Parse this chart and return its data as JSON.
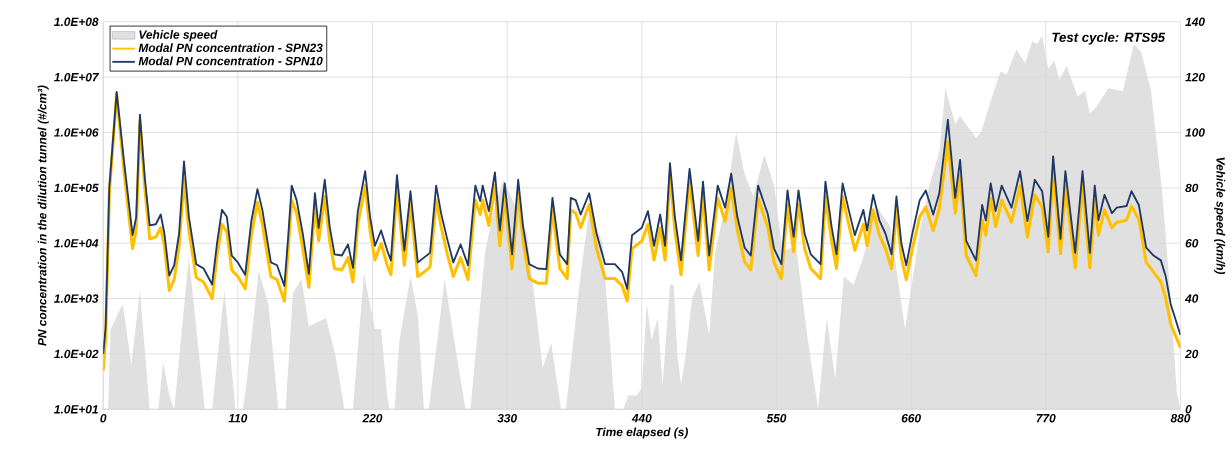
{
  "chart_data": {
    "type": "line",
    "xlabel": "Time elapsed (s)",
    "ylabel": "PN concentration in the dilution tunnel (#/cm³)",
    "y2label": "Vehicle speed (km/h)",
    "annotations": [
      "Test cycle: RTS95"
    ],
    "xlim": [
      0,
      880
    ],
    "xticks": [
      0,
      110,
      220,
      330,
      440,
      550,
      660,
      770,
      880
    ],
    "ylim": [
      10,
      100000000
    ],
    "yticks": [
      {
        "value": 10,
        "label": "1.0E+01"
      },
      {
        "value": 100,
        "label": "1.0E+02"
      },
      {
        "value": 1000,
        "label": "1.0E+03"
      },
      {
        "value": 10000,
        "label": "1.0E+04"
      },
      {
        "value": 100000,
        "label": "1.0E+05"
      },
      {
        "value": 1000000,
        "label": "1.0E+06"
      },
      {
        "value": 10000000,
        "label": "1.0E+07"
      },
      {
        "value": 100000000,
        "label": "1.0E+08"
      }
    ],
    "y2lim": [
      0,
      140
    ],
    "y2ticks": [
      0,
      20,
      40,
      60,
      80,
      100,
      120,
      140
    ],
    "log": "y",
    "grid": true,
    "legend": "top left",
    "x": [
      0,
      2,
      5,
      11,
      17,
      24,
      27,
      30,
      34,
      38,
      43,
      47,
      50,
      54,
      58,
      62,
      66,
      70,
      76,
      82,
      89,
      93,
      97,
      101,
      105,
      110,
      116,
      121,
      126,
      130,
      137,
      142,
      148,
      151,
      154,
      158,
      163,
      168,
      173,
      176,
      181,
      185,
      189,
      195,
      200,
      204,
      208,
      214,
      218,
      222,
      227,
      232,
      235,
      240,
      246,
      251,
      257,
      262,
      267,
      272,
      276,
      281,
      286,
      292,
      298,
      304,
      308,
      310,
      315,
      320,
      324,
      328,
      334,
      339,
      343,
      348,
      355,
      362,
      367,
      373,
      379,
      382,
      386,
      390,
      397,
      403,
      410,
      418,
      424,
      428,
      432,
      440,
      445,
      450,
      455,
      459,
      463,
      467,
      472,
      479,
      486,
      490,
      495,
      502,
      508,
      513,
      518,
      524,
      529,
      535,
      543,
      548,
      554,
      559,
      564,
      568,
      573,
      578,
      586,
      590,
      595,
      599,
      604,
      609,
      614,
      621,
      624,
      629,
      634,
      639,
      644,
      648,
      652,
      656,
      661,
      667,
      672,
      678,
      683,
      690,
      696,
      700,
      705,
      713,
      718,
      721,
      725,
      729,
      734,
      742,
      749,
      755,
      761,
      767,
      772,
      776,
      782,
      786,
      794,
      800,
      806,
      810,
      813,
      818,
      824,
      828,
      836,
      840,
      846,
      852,
      858,
      864,
      868,
      872,
      880
    ],
    "series": [
      {
        "name": "Vehicle speed",
        "type": "area",
        "axis": "y2",
        "color": "#e0e0e0",
        "x": [
          0,
          4,
          6,
          16,
          23,
          30,
          38,
          45,
          49,
          54,
          58,
          70,
          83,
          89,
          99,
          108,
          114,
          117,
          127,
          135,
          143,
          149,
          155,
          162,
          168,
          182,
          190,
          197,
          204,
          213,
          222,
          227,
          232,
          234,
          238,
          242,
          251,
          257,
          262,
          266,
          279,
          290,
          296,
          300,
          312,
          319,
          327,
          346,
          359,
          366,
          374,
          378,
          389,
          397,
          408,
          418,
          425,
          429,
          436,
          440,
          444,
          448,
          453,
          457,
          463,
          466,
          469,
          472,
          476,
          481,
          487,
          495,
          500,
          508,
          517,
          524,
          531,
          540,
          548,
          555,
          566,
          575,
          584,
          591,
          598,
          605,
          613,
          621,
          632,
          643,
          655,
          667,
          675,
          683,
          688,
          696,
          700,
          713,
          717,
          724,
          733,
          738,
          746,
          753,
          759,
          763,
          767,
          772,
          777,
          781,
          787,
          796,
          802,
          806,
          811,
          821,
          833,
          842,
          848,
          856,
          865,
          872,
          877,
          880
        ],
        "values": [
          0,
          0,
          29,
          38,
          16,
          43,
          0,
          0,
          17,
          5,
          0,
          55,
          0,
          0,
          43,
          0,
          0,
          9,
          50,
          38,
          0,
          0,
          42,
          47,
          30,
          33,
          19,
          0,
          0,
          49,
          29,
          29,
          5,
          0,
          0,
          25,
          48,
          34,
          0,
          0,
          47,
          16,
          0,
          0,
          57,
          72,
          83,
          64,
          15,
          24,
          0,
          0,
          45,
          72,
          60,
          0,
          0,
          5,
          5,
          8,
          38,
          25,
          33,
          9,
          45,
          45,
          20,
          9,
          20,
          40,
          46,
          27,
          57,
          73,
          100,
          85,
          77,
          92,
          81,
          57,
          59,
          27,
          0,
          33,
          11,
          48,
          45,
          55,
          73,
          66,
          29,
          64,
          81,
          93,
          116,
          103,
          106,
          98,
          100,
          110,
          122,
          121,
          130,
          125,
          133,
          132,
          135,
          123,
          126,
          119,
          124,
          113,
          115,
          107,
          109,
          116,
          115,
          132,
          129,
          115,
          79,
          40,
          6,
          0
        ]
      },
      {
        "name": "Modal PN concentration - SPN23",
        "color": "#ffc000",
        "values": [
          50,
          200,
          80000.0,
          5000000.0,
          200000.0,
          8000.0,
          18000.0,
          1600000.0,
          100000.0,
          12000.0,
          13000.0,
          19000.0,
          9000.0,
          1400.0,
          2200.0,
          9000.0,
          140000.0,
          17000.0,
          2400.0,
          2000.0,
          1000.0,
          6000.0,
          22000.0,
          16000.0,
          3300.0,
          2500.0,
          1500.0,
          14000.0,
          55000.0,
          22000.0,
          2500.0,
          2200.0,
          900.0,
          7000.0,
          60000.0,
          35000.0,
          8000.0,
          1600.0,
          50000.0,
          11000.0,
          70000.0,
          11000.0,
          3500.0,
          3300.0,
          5500.0,
          2000.0,
          22000.0,
          110000.0,
          17000.0,
          5000.0,
          10000.0,
          4000.0,
          2700.0,
          100000.0,
          4000.0,
          50000.0,
          2500.0,
          3000.0,
          3700.0,
          60000.0,
          20000.0,
          6500.0,
          2500.0,
          5500.0,
          2200.0,
          60000.0,
          33000.0,
          60000.0,
          21000.0,
          110000.0,
          9000.0,
          70000.0,
          3500.0,
          80000.0,
          11000.0,
          2300.0,
          1900.0,
          1900.0,
          40000.0,
          3500.0,
          2300.0,
          40000.0,
          35000.0,
          19000.0,
          50000.0,
          8000.0,
          2300.0,
          2300.0,
          1700.0,
          900.0,
          8000.0,
          11000.0,
          22000.0,
          5000.0,
          19000.0,
          5000.0,
          170000.0,
          17000.0,
          2700.0,
          130000.0,
          6000.0,
          75000.0,
          3300.0,
          65000.0,
          25000.0,
          100000.0,
          17000.0,
          4600.0,
          3300.0,
          65000.0,
          19000.0,
          4500.0,
          2300.0,
          50000.0,
          7000.0,
          50000.0,
          8000.0,
          3500.0,
          2300.0,
          70000.0,
          11000.0,
          3500.0,
          70000.0,
          22000.0,
          7500.0,
          22000.0,
          9000.0,
          40000.0,
          14000.0,
          8000.0,
          3500.0,
          40000.0,
          5500.0,
          2200.0,
          8000.0,
          30000.0,
          45000.0,
          17000.0,
          42000.0,
          680000.0,
          35000.0,
          170000.0,
          6000.0,
          2600.0,
          26000.0,
          14000.0,
          65000.0,
          20000.0,
          60000.0,
          24000.0,
          110000.0,
          13000.0,
          75000.0,
          45000.0,
          7000.0,
          200000.0,
          6500.0,
          110000.0,
          3600.0,
          110000.0,
          3600.0,
          60000.0,
          14000.0,
          40000.0,
          19000.0,
          24000.0,
          26000.0,
          47000.0,
          27000.0,
          4500.0,
          3000.0,
          2000.0,
          1000.0,
          350.0,
          130.0
        ]
      },
      {
        "name": "Modal PN concentration - SPN10",
        "color": "#1f3864",
        "values": [
          100,
          300,
          100000.0,
          5400000.0,
          300000.0,
          14000.0,
          30000.0,
          2100000.0,
          150000.0,
          21000.0,
          22000.0,
          33000.0,
          15000.0,
          2600.0,
          4000.0,
          15000.0,
          300000.0,
          30000.0,
          4200.0,
          3500.0,
          1800.0,
          10000.0,
          40000.0,
          30000.0,
          6000.0,
          4500.0,
          2700.0,
          25000.0,
          95000.0,
          40000.0,
          4500.0,
          4000.0,
          1700.0,
          12000.0,
          110000.0,
          60000.0,
          15000.0,
          2800.0,
          80000.0,
          19000.0,
          140000.0,
          20000.0,
          6300.0,
          6000.0,
          9500.0,
          3600.0,
          38000.0,
          200000.0,
          30000.0,
          9000.0,
          17000.0,
          7400.0,
          4900.0,
          170000.0,
          7400.0,
          87000.0,
          4500.0,
          5500.0,
          6700.0,
          110000.0,
          35000.0,
          12000.0,
          4500.0,
          9500.0,
          4000.0,
          110000.0,
          58000.0,
          110000.0,
          38000.0,
          190000.0,
          17000.0,
          120000.0,
          6300.0,
          140000.0,
          20000.0,
          4200.0,
          3500.0,
          3400.0,
          66000.0,
          6300.0,
          4200.0,
          66000.0,
          60000.0,
          33000.0,
          80000.0,
          15000.0,
          4200.0,
          4200.0,
          3000.0,
          1500.0,
          14000.0,
          19000.0,
          38000.0,
          9000.0,
          33000.0,
          9000.0,
          280000.0,
          30000.0,
          4900.0,
          220000.0,
          11000.0,
          130000.0,
          6000.0,
          110000.0,
          44000.0,
          180000.0,
          30000.0,
          8300.0,
          6000.0,
          110000.0,
          33000.0,
          8000.0,
          4200.0,
          90000.0,
          13000.0,
          90000.0,
          15000.0,
          6300.0,
          4200.0,
          130000.0,
          20000.0,
          6300.0,
          120000.0,
          40000.0,
          14000.0,
          40000.0,
          17000.0,
          75000.0,
          26000.0,
          15000.0,
          6300.0,
          70000.0,
          10000.0,
          4000.0,
          15000.0,
          60000.0,
          90000.0,
          33000.0,
          80000.0,
          1700000.0,
          66000.0,
          320000.0,
          11000.0,
          4900.0,
          49000.0,
          26000.0,
          120000.0,
          38000.0,
          110000.0,
          44000.0,
          200000.0,
          25000.0,
          140000.0,
          87000.0,
          13000.0,
          370000.0,
          12000.0,
          200000.0,
          6700.0,
          200000.0,
          6700.0,
          110000.0,
          26000.0,
          75000.0,
          35000.0,
          44000.0,
          47000.0,
          87000.0,
          49000.0,
          8300.0,
          6000.0,
          4900.0,
          2500.0,
          800.0,
          220.0
        ]
      }
    ]
  }
}
